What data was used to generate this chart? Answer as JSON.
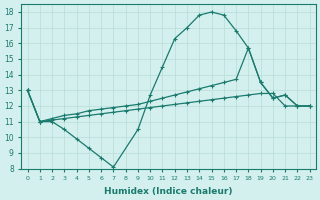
{
  "xlabel": "Humidex (Indice chaleur)",
  "bg_color": "#d4f0ee",
  "line_color": "#1a7a6e",
  "grid_color": "#b8dcd8",
  "xlim": [
    -0.5,
    23.5
  ],
  "ylim": [
    8,
    18.5
  ],
  "xticks": [
    0,
    1,
    2,
    3,
    4,
    5,
    6,
    7,
    8,
    9,
    10,
    11,
    12,
    13,
    14,
    15,
    16,
    17,
    18,
    19,
    20,
    21,
    22,
    23
  ],
  "yticks": [
    8,
    9,
    10,
    11,
    12,
    13,
    14,
    15,
    16,
    17,
    18
  ],
  "line1_x": [
    0,
    1,
    2,
    3,
    4,
    5,
    6,
    7,
    9,
    10,
    11,
    12,
    13,
    14,
    15,
    16,
    17,
    18,
    19,
    20,
    21,
    22,
    23
  ],
  "line1_y": [
    13.0,
    11.0,
    11.0,
    10.5,
    9.9,
    9.3,
    8.7,
    8.1,
    10.5,
    12.7,
    14.5,
    16.3,
    17.0,
    17.8,
    18.0,
    17.8,
    16.8,
    15.7,
    13.5,
    12.5,
    12.7,
    12.0,
    12.0
  ],
  "line2_x": [
    0,
    1,
    2,
    3,
    4,
    5,
    6,
    7,
    8,
    9,
    10,
    11,
    12,
    13,
    14,
    15,
    16,
    17,
    18,
    19,
    20,
    21,
    22,
    23
  ],
  "line2_y": [
    13.0,
    11.0,
    11.2,
    11.4,
    11.5,
    11.7,
    11.8,
    11.9,
    12.0,
    12.1,
    12.3,
    12.5,
    12.7,
    12.9,
    13.1,
    13.3,
    13.5,
    13.7,
    15.7,
    13.5,
    12.5,
    12.7,
    12.0,
    12.0
  ],
  "line3_x": [
    0,
    1,
    2,
    3,
    4,
    5,
    6,
    7,
    8,
    9,
    10,
    11,
    12,
    13,
    14,
    15,
    16,
    17,
    18,
    19,
    20,
    21,
    22,
    23
  ],
  "line3_y": [
    13.0,
    11.0,
    11.1,
    11.2,
    11.3,
    11.4,
    11.5,
    11.6,
    11.7,
    11.8,
    11.9,
    12.0,
    12.1,
    12.2,
    12.3,
    12.4,
    12.5,
    12.6,
    12.7,
    12.8,
    12.8,
    12.0,
    12.0,
    12.0
  ]
}
